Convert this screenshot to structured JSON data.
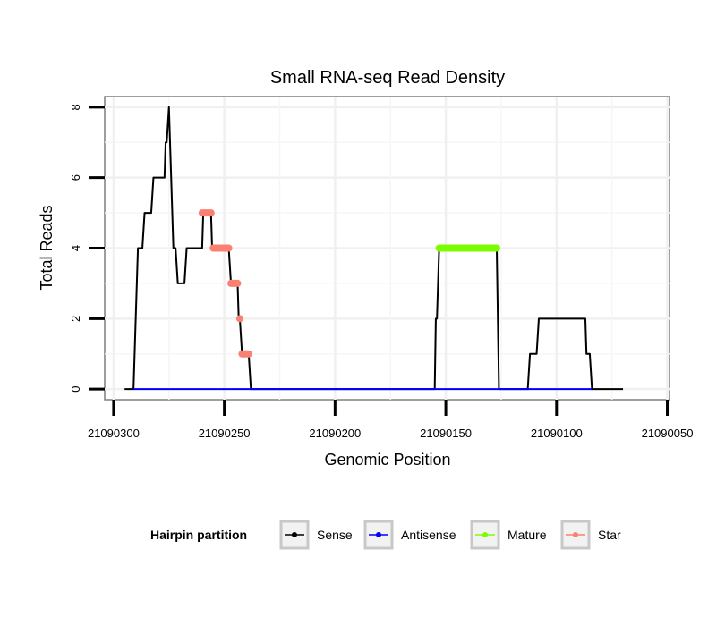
{
  "chart_data": {
    "type": "line",
    "title": "Small RNA-seq Read Density",
    "xlabel": "Genomic Position",
    "ylabel": "Total Reads",
    "x_reversed": true,
    "xlim": [
      21090304,
      21090049
    ],
    "ylim": [
      -0.3,
      8.3
    ],
    "x_ticks": [
      21090300,
      21090250,
      21090200,
      21090150,
      21090100,
      21090050
    ],
    "x_tick_labels": [
      "21090300",
      "21090250",
      "21090200",
      "21090150",
      "21090100",
      "21090050"
    ],
    "y_ticks": [
      0,
      2,
      4,
      6,
      8
    ],
    "y_tick_labels": [
      "0",
      "2",
      "4",
      "6",
      "8"
    ],
    "grid": true,
    "legend": {
      "title": "Hairpin partition",
      "position": "bottom",
      "entries": [
        {
          "name": "Sense",
          "color": "#000000"
        },
        {
          "name": "Antisense",
          "color": "#0000ff"
        },
        {
          "name": "Mature",
          "color": "#7cfc00"
        },
        {
          "name": "Star",
          "color": "#fa8072"
        }
      ]
    },
    "series": [
      {
        "name": "Sense",
        "color": "#000000",
        "kind": "line",
        "points": [
          [
            21090295,
            0
          ],
          [
            21090291,
            0
          ],
          [
            21090290.5,
            1
          ],
          [
            21090290,
            2
          ],
          [
            21090289.5,
            3
          ],
          [
            21090289,
            4
          ],
          [
            21090287,
            4
          ],
          [
            21090286,
            5
          ],
          [
            21090283,
            5
          ],
          [
            21090282,
            6
          ],
          [
            21090277,
            6
          ],
          [
            21090276.5,
            7
          ],
          [
            21090276,
            7
          ],
          [
            21090275,
            8
          ],
          [
            21090274,
            6
          ],
          [
            21090273,
            4
          ],
          [
            21090272,
            4
          ],
          [
            21090271,
            3
          ],
          [
            21090268,
            3
          ],
          [
            21090267,
            4
          ],
          [
            21090260,
            4
          ],
          [
            21090259.5,
            5
          ],
          [
            21090256,
            5
          ],
          [
            21090255.5,
            4
          ],
          [
            21090248,
            4
          ],
          [
            21090247,
            3
          ],
          [
            21090244,
            3
          ],
          [
            21090243.5,
            2
          ],
          [
            21090243,
            2
          ],
          [
            21090242,
            1
          ],
          [
            21090239,
            1
          ],
          [
            21090238,
            0
          ],
          [
            21090155,
            0
          ],
          [
            21090154.5,
            2
          ],
          [
            21090154,
            2
          ],
          [
            21090153,
            4
          ],
          [
            21090127,
            4
          ],
          [
            21090126,
            0
          ],
          [
            21090113,
            0
          ],
          [
            21090112,
            1
          ],
          [
            21090109,
            1
          ],
          [
            21090108,
            2
          ],
          [
            21090087,
            2
          ],
          [
            21090086.5,
            1
          ],
          [
            21090085,
            1
          ],
          [
            21090084,
            0
          ],
          [
            21090070,
            0
          ]
        ]
      },
      {
        "name": "Antisense",
        "color": "#0000ff",
        "kind": "line",
        "points": [
          [
            21090291,
            0
          ],
          [
            21090084,
            0
          ]
        ]
      },
      {
        "name": "Mature",
        "color": "#7cfc00",
        "kind": "segments",
        "segments": [
          [
            21090153,
            21090127,
            4
          ]
        ]
      },
      {
        "name": "Star",
        "color": "#fa8072",
        "kind": "segments",
        "segments": [
          [
            21090260,
            21090256,
            5
          ],
          [
            21090255,
            21090248,
            4
          ],
          [
            21090247,
            21090244,
            3
          ],
          [
            21090243,
            21090243,
            2
          ],
          [
            21090242,
            21090239,
            1
          ]
        ]
      }
    ]
  }
}
